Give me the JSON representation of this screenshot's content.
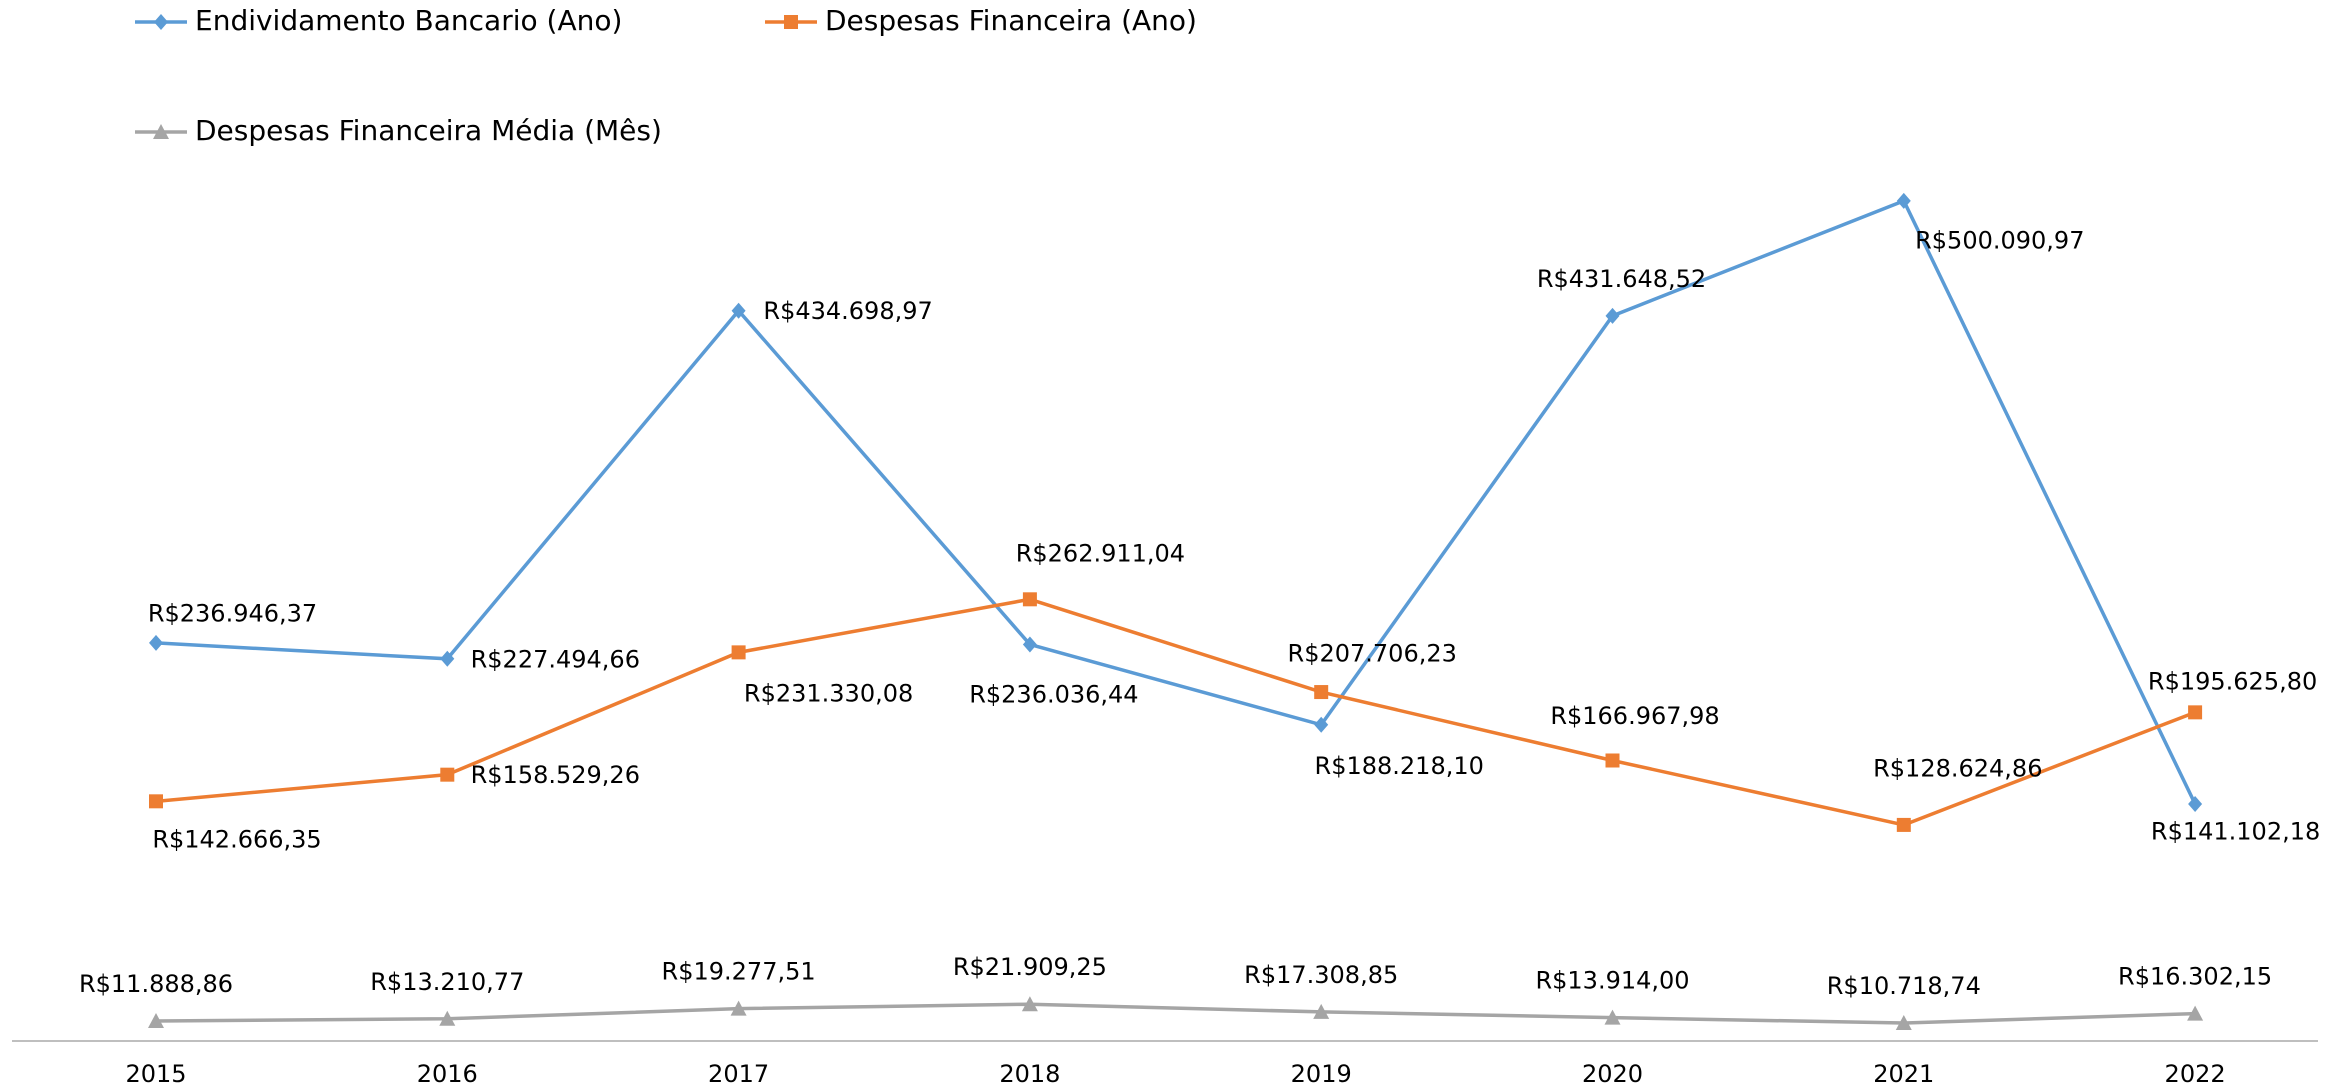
{
  "chart_data": {
    "type": "line",
    "categories": [
      "2015",
      "2016",
      "2017",
      "2018",
      "2019",
      "2020",
      "2021",
      "2022"
    ],
    "series": [
      {
        "name": "Endividamento Bancario (Ano)",
        "color": "#5b9bd5",
        "marker": "diamond",
        "values": [
          236946.37,
          227494.66,
          434698.97,
          236036.44,
          188218.1,
          431648.52,
          500090.97,
          141102.18
        ],
        "value_labels": [
          "R$236.946,37",
          "R$227.494,66",
          "R$434.698,97",
          "R$236.036,44",
          "R$188.218,10",
          "R$431.648,52",
          "R$500.090,97",
          "R$141.102,18"
        ]
      },
      {
        "name": "Despesas Financeira (Ano)",
        "color": "#ed7d31",
        "marker": "square",
        "values": [
          142666.35,
          158529.26,
          231330.08,
          262911.04,
          207706.23,
          166967.98,
          128624.86,
          195625.8
        ],
        "value_labels": [
          "R$142.666,35",
          "R$158.529,26",
          "R$231.330,08",
          "R$262.911,04",
          "R$207.706,23",
          "R$166.967,98",
          "R$128.624,86",
          "R$195.625,80"
        ]
      },
      {
        "name": "Despesas Financeira Média (Mês)",
        "color": "#a5a5a5",
        "marker": "triangle",
        "values": [
          11888.86,
          13210.77,
          19277.51,
          21909.25,
          17308.85,
          13914.0,
          10718.74,
          16302.15
        ],
        "value_labels": [
          "R$11.888,86",
          "R$13.210,77",
          "R$19.277,51",
          "R$21.909,25",
          "R$17.308,85",
          "R$13.914,00",
          "R$10.718,74",
          "R$16.302,15"
        ]
      }
    ],
    "ylim": [
      0,
      550000
    ],
    "grid": false,
    "legend": "top"
  }
}
